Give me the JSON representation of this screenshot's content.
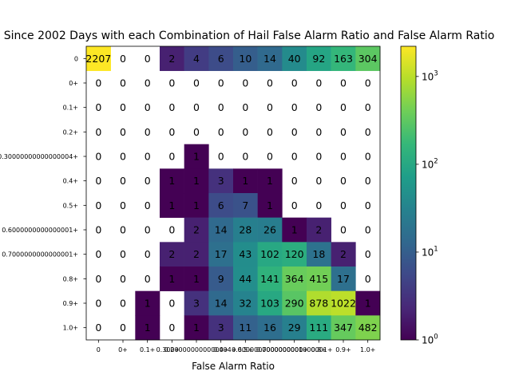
{
  "chart_data": {
    "type": "heatmap",
    "title": "Since 2002 Days with each Combination of Hail False Alarm Ratio and False Alarm Ratio",
    "xlabel": "False Alarm Ratio",
    "ylabel": "",
    "x_categories": [
      "0",
      "0+",
      "0.1+",
      "0.2+",
      "0.30000000000000004+",
      "0.4+",
      "0.5+",
      "0.6000000000000001+",
      "0.7000000000000001+",
      "0.8+",
      "0.9+",
      "1.0+"
    ],
    "y_categories": [
      "0",
      "0+",
      "0.1+",
      "0.2+",
      "0.30000000000000004+",
      "0.4+",
      "0.5+",
      "0.6000000000000001+",
      "0.7000000000000001+",
      "0.8+",
      "0.9+",
      "1.0+"
    ],
    "values": [
      [
        2207,
        0,
        0,
        2,
        4,
        6,
        10,
        14,
        40,
        92,
        163,
        304
      ],
      [
        0,
        0,
        0,
        0,
        0,
        0,
        0,
        0,
        0,
        0,
        0,
        0
      ],
      [
        0,
        0,
        0,
        0,
        0,
        0,
        0,
        0,
        0,
        0,
        0,
        0
      ],
      [
        0,
        0,
        0,
        0,
        0,
        0,
        0,
        0,
        0,
        0,
        0,
        0
      ],
      [
        0,
        0,
        0,
        0,
        1,
        0,
        0,
        0,
        0,
        0,
        0,
        0
      ],
      [
        0,
        0,
        0,
        1,
        1,
        3,
        1,
        1,
        0,
        0,
        0,
        0
      ],
      [
        0,
        0,
        0,
        1,
        1,
        6,
        7,
        1,
        0,
        0,
        0,
        0
      ],
      [
        0,
        0,
        0,
        0,
        2,
        14,
        28,
        26,
        1,
        2,
        0,
        0
      ],
      [
        0,
        0,
        0,
        2,
        2,
        17,
        43,
        102,
        120,
        18,
        2,
        0
      ],
      [
        0,
        0,
        0,
        1,
        1,
        9,
        44,
        141,
        364,
        415,
        17,
        0
      ],
      [
        0,
        0,
        1,
        0,
        3,
        14,
        32,
        103,
        290,
        878,
        1022,
        1
      ],
      [
        0,
        0,
        1,
        0,
        1,
        3,
        11,
        16,
        29,
        111,
        347,
        482
      ]
    ],
    "color_scale": "log",
    "colormap": "viridis",
    "color_range": [
      1,
      2207
    ],
    "colorbar_ticks": [
      {
        "base": "10",
        "exp": "0",
        "value": 1
      },
      {
        "base": "10",
        "exp": "1",
        "value": 10
      },
      {
        "base": "10",
        "exp": "2",
        "value": 100
      },
      {
        "base": "10",
        "exp": "3",
        "value": 1000
      }
    ],
    "zero_color": "#ffffff"
  }
}
